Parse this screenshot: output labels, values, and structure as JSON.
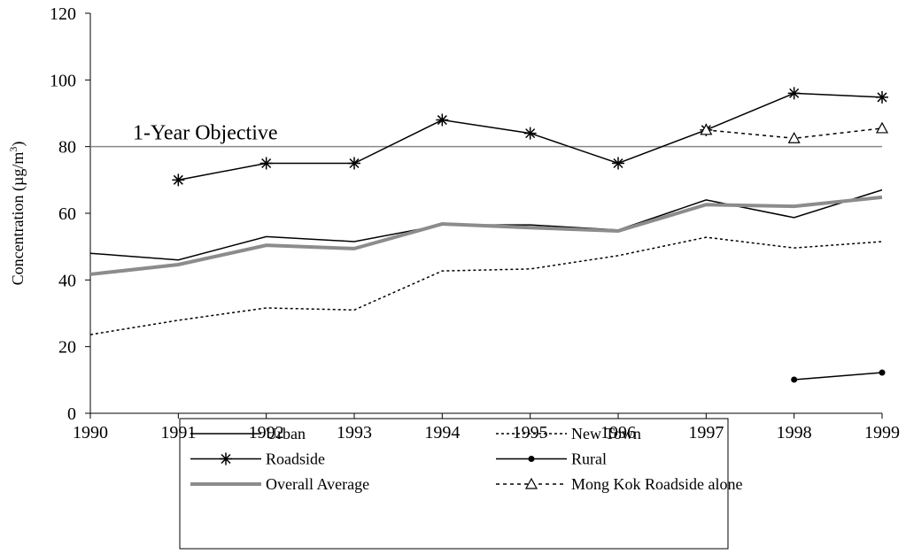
{
  "chart_data": {
    "type": "line",
    "y_label": [
      "Concentration (µg/m",
      "3",
      ")"
    ],
    "x": [
      1990,
      1991,
      1992,
      1993,
      1994,
      1995,
      1996,
      1997,
      1998,
      1999
    ],
    "xlim": [
      1990,
      1999
    ],
    "xticks": [
      1990,
      1991,
      1992,
      1993,
      1994,
      1995,
      1996,
      1997,
      1998,
      1999
    ],
    "ylim": [
      0,
      120
    ],
    "yticks": [
      0,
      20,
      40,
      60,
      80,
      100,
      120
    ],
    "reference_line": {
      "value": 80,
      "label": "1-Year Objective",
      "color": "#888888"
    },
    "series": [
      {
        "name": "Urban",
        "color": "#000000",
        "width": 1.5,
        "dash": "none",
        "marker": "none",
        "values": [
          48,
          46,
          53,
          51.5,
          56.5,
          56.5,
          55,
          64,
          58.7,
          67
        ]
      },
      {
        "name": "New Town",
        "color": "#000000",
        "width": 1.5,
        "dash": "3 3",
        "marker": "none",
        "values": [
          23.6,
          27.9,
          31.6,
          31,
          42.7,
          43.3,
          47.3,
          52.8,
          49.6,
          51.5
        ]
      },
      {
        "name": "Roadside",
        "color": "#000000",
        "width": 1.5,
        "dash": "none",
        "marker": "asterisk",
        "values": [
          null,
          70,
          75,
          75,
          88,
          84,
          75,
          85,
          96,
          94.8
        ]
      },
      {
        "name": "Rural",
        "color": "#000000",
        "width": 1.5,
        "dash": "none",
        "marker": "circle",
        "values": [
          null,
          null,
          null,
          null,
          null,
          null,
          null,
          null,
          10.1,
          12.2
        ]
      },
      {
        "name": "Overall Average",
        "color": "#8c8c8c",
        "width": 4,
        "dash": "none",
        "marker": "none",
        "values": [
          41.7,
          44.6,
          50.4,
          49.4,
          56.8,
          55.7,
          54.7,
          62.6,
          62.1,
          64.8
        ]
      },
      {
        "name": "Mong Kok Roadside alone",
        "color": "#000000",
        "width": 1.5,
        "dash": "4 4",
        "marker": "triangle",
        "values": [
          null,
          null,
          null,
          null,
          null,
          null,
          null,
          85,
          82.5,
          85.5
        ]
      }
    ]
  }
}
